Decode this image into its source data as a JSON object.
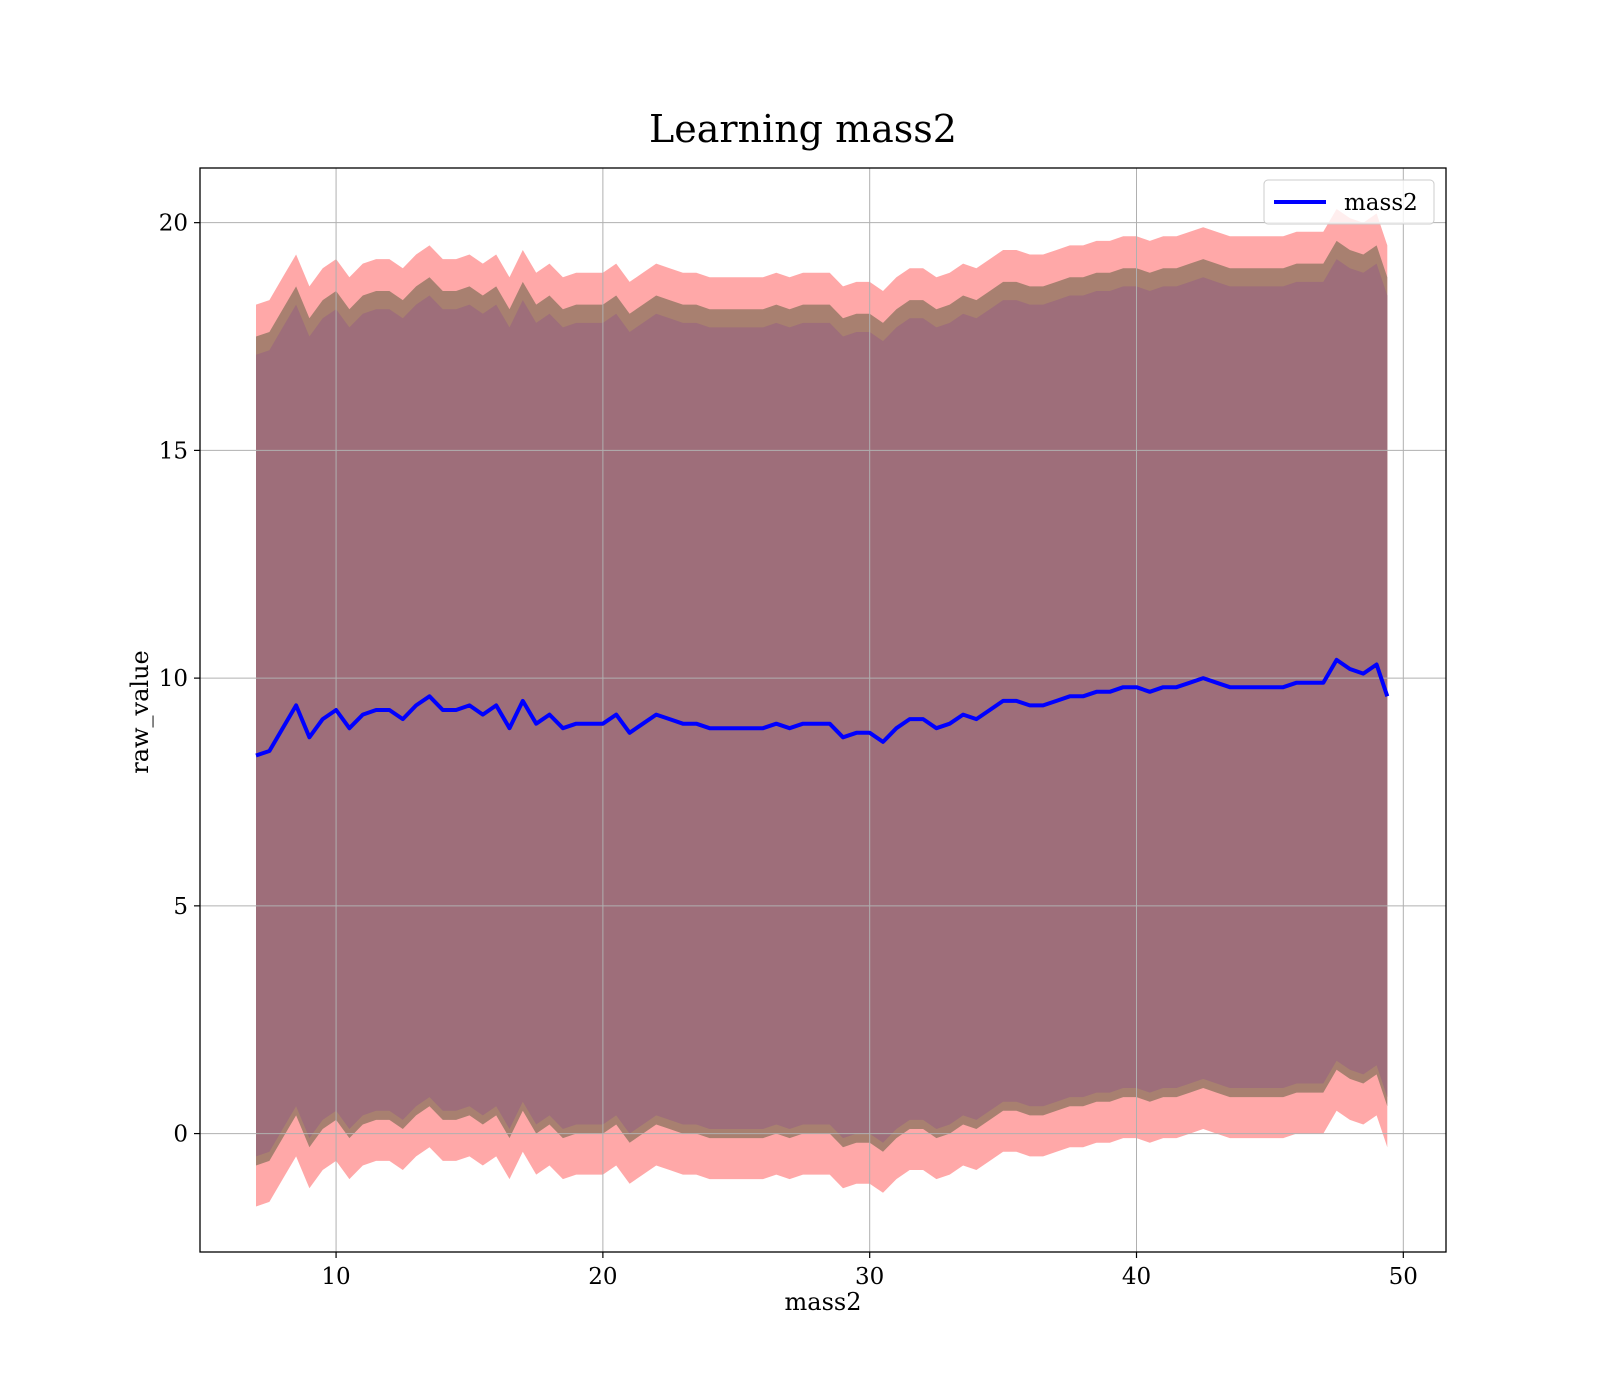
{
  "chart_data": {
    "type": "line",
    "title": "Learning mass2",
    "xlabel": "mass2",
    "ylabel": "raw_value",
    "xlim": [
      4.9,
      51.6
    ],
    "ylim": [
      -2.6,
      21.2
    ],
    "xticks": [
      10,
      20,
      30,
      40,
      50
    ],
    "yticks": [
      0,
      5,
      10,
      15,
      20
    ],
    "grid": true,
    "legend_position": "top-right",
    "colors": {
      "line": "#0000ff",
      "outer_band": "#ff9999",
      "inner_band": "#a88070",
      "core_band": "#9e6e7a",
      "grid": "#b0b0b0"
    },
    "x": [
      7.0,
      7.5,
      8.0,
      8.5,
      9.0,
      9.5,
      10.0,
      10.5,
      11.0,
      11.5,
      12.0,
      12.5,
      13.0,
      13.5,
      14.0,
      14.5,
      15.0,
      15.5,
      16.0,
      16.5,
      17.0,
      17.5,
      18.0,
      18.5,
      19.0,
      19.5,
      20.0,
      20.5,
      21.0,
      21.5,
      22.0,
      22.5,
      23.0,
      23.5,
      24.0,
      24.5,
      25.0,
      25.5,
      26.0,
      26.5,
      27.0,
      27.5,
      28.0,
      28.5,
      29.0,
      29.5,
      30.0,
      30.5,
      31.0,
      31.5,
      32.0,
      32.5,
      33.0,
      33.5,
      34.0,
      34.5,
      35.0,
      35.5,
      36.0,
      36.5,
      37.0,
      37.5,
      38.0,
      38.5,
      39.0,
      39.5,
      40.0,
      40.5,
      41.0,
      41.5,
      42.0,
      42.5,
      43.0,
      43.5,
      44.0,
      44.5,
      45.0,
      45.5,
      46.0,
      46.5,
      47.0,
      47.5,
      48.0,
      48.5,
      49.0,
      49.4
    ],
    "series": [
      {
        "name": "mass2",
        "values": [
          8.3,
          8.4,
          8.9,
          9.4,
          8.7,
          9.1,
          9.3,
          8.9,
          9.2,
          9.3,
          9.3,
          9.1,
          9.4,
          9.6,
          9.3,
          9.3,
          9.4,
          9.2,
          9.4,
          8.9,
          9.5,
          9.0,
          9.2,
          8.9,
          9.0,
          9.0,
          9.0,
          9.2,
          8.8,
          9.0,
          9.2,
          9.1,
          9.0,
          9.0,
          8.9,
          8.9,
          8.9,
          8.9,
          8.9,
          9.0,
          8.9,
          9.0,
          9.0,
          9.0,
          8.7,
          8.8,
          8.8,
          8.6,
          8.9,
          9.1,
          9.1,
          8.9,
          9.0,
          9.2,
          9.1,
          9.3,
          9.5,
          9.5,
          9.4,
          9.4,
          9.5,
          9.6,
          9.6,
          9.7,
          9.7,
          9.8,
          9.8,
          9.7,
          9.8,
          9.8,
          9.9,
          10.0,
          9.9,
          9.8,
          9.8,
          9.8,
          9.8,
          9.8,
          9.9,
          9.9,
          9.9,
          10.4,
          10.2,
          10.1,
          10.3,
          9.6
        ]
      }
    ],
    "bands": [
      {
        "offset_upper": 9.9,
        "offset_lower": 9.9,
        "color_key": "outer_band"
      },
      {
        "offset_upper": 9.2,
        "offset_lower": 9.0,
        "color_key": "inner_band"
      },
      {
        "offset_upper": 8.8,
        "offset_lower": 8.8,
        "color_key": "core_band"
      }
    ]
  }
}
